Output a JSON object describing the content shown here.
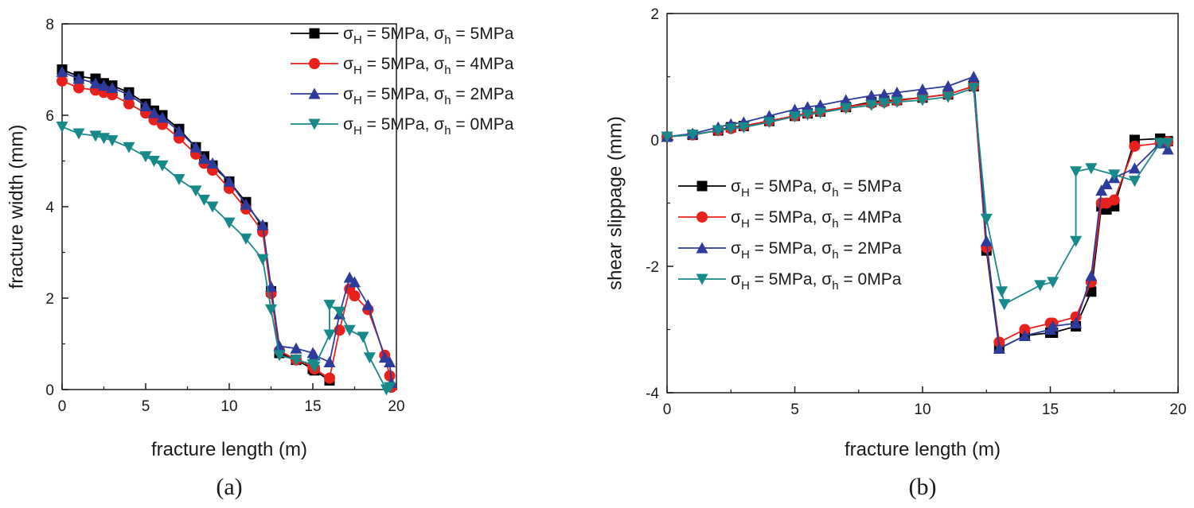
{
  "chart_data": [
    {
      "type": "line",
      "panel_label": "(a)",
      "xlabel": "fracture length (m)",
      "ylabel": "fracture width (mm)",
      "xlim": [
        0,
        20
      ],
      "ylim": [
        0,
        8
      ],
      "xticks": [
        0,
        5,
        10,
        15,
        20
      ],
      "yticks": [
        0,
        2,
        4,
        6,
        8
      ],
      "legend_position": "top-right",
      "series": [
        {
          "name": "σH = 5MPa, σh = 5MPa",
          "legend": {
            "sym1": "σ",
            "sub1": "H",
            "mid": " = 5MPa, ",
            "sym2": "σ",
            "sub2": "h",
            "end": " = 5MPa"
          },
          "color": "#000000",
          "marker": "square",
          "x": [
            0,
            1,
            2,
            2.5,
            3,
            4,
            5,
            5.5,
            6,
            7,
            8,
            8.5,
            9,
            10,
            11,
            12,
            12.5,
            13,
            14,
            15,
            15.1,
            16
          ],
          "y": [
            7.0,
            6.85,
            6.8,
            6.7,
            6.65,
            6.5,
            6.25,
            6.1,
            6.0,
            5.7,
            5.3,
            5.1,
            4.9,
            4.55,
            4.1,
            3.55,
            2.15,
            0.8,
            0.65,
            0.45,
            0.42,
            0.2
          ]
        },
        {
          "name": "σH = 5MPa, σh = 4MPa",
          "legend": {
            "sym1": "σ",
            "sub1": "H",
            "mid": " = 5MPa, ",
            "sym2": "σ",
            "sub2": "h",
            "end": " = 4MPa"
          },
          "color": "#e8211c",
          "marker": "circle",
          "x": [
            0,
            1,
            2,
            2.5,
            3,
            4,
            5,
            5.5,
            6,
            7,
            8,
            8.5,
            9,
            10,
            11,
            12,
            12.5,
            13,
            14,
            15,
            15.1,
            16,
            16.6,
            17.2,
            17.5,
            18.3,
            19.3,
            19.6,
            19.7
          ],
          "y": [
            6.75,
            6.6,
            6.55,
            6.5,
            6.45,
            6.25,
            6.05,
            5.9,
            5.8,
            5.5,
            5.15,
            4.95,
            4.8,
            4.4,
            3.95,
            3.45,
            2.1,
            0.85,
            0.65,
            0.5,
            0.45,
            0.25,
            1.3,
            2.2,
            2.05,
            1.75,
            0.75,
            0.3,
            0.05
          ]
        },
        {
          "name": "σH = 5MPa, σh = 2MPa",
          "legend": {
            "sym1": "σ",
            "sub1": "H",
            "mid": " = 5MPa, ",
            "sym2": "σ",
            "sub2": "h",
            "end": " = 2MPa"
          },
          "color": "#2d3c9c",
          "marker": "triangle-up",
          "x": [
            0,
            1,
            2,
            2.5,
            3,
            4,
            5,
            5.5,
            6,
            7,
            8,
            8.5,
            9,
            10,
            11,
            12,
            12.5,
            13,
            14,
            15,
            15.1,
            16,
            16.6,
            17.2,
            17.5,
            18.3,
            19.3,
            19.6,
            19.7
          ],
          "y": [
            6.95,
            6.8,
            6.7,
            6.65,
            6.6,
            6.45,
            6.2,
            6.05,
            5.95,
            5.65,
            5.3,
            5.05,
            4.95,
            4.55,
            4.05,
            3.6,
            2.25,
            0.95,
            0.9,
            0.8,
            0.75,
            0.6,
            1.65,
            2.45,
            2.35,
            1.85,
            0.7,
            0.6,
            0.15
          ]
        },
        {
          "name": "σH = 5MPa, σh = 0MPa",
          "legend": {
            "sym1": "σ",
            "sub1": "H",
            "mid": " = 5MPa, ",
            "sym2": "σ",
            "sub2": "h",
            "end": " = 0MPa"
          },
          "color": "#16898a",
          "marker": "triangle-down",
          "x": [
            0,
            1,
            2,
            2.5,
            3,
            4,
            5,
            5.5,
            6,
            7,
            8,
            8.5,
            9,
            10,
            11,
            12,
            12.5,
            13,
            14,
            15,
            15.1,
            16,
            16,
            16.6,
            17.2,
            18,
            18.4,
            19.4,
            19.6
          ],
          "y": [
            5.75,
            5.6,
            5.55,
            5.5,
            5.45,
            5.3,
            5.1,
            5.0,
            4.9,
            4.6,
            4.35,
            4.15,
            4.0,
            3.65,
            3.3,
            2.85,
            1.75,
            0.75,
            0.65,
            0.55,
            0.5,
            1.2,
            1.85,
            1.7,
            1.3,
            1.15,
            0.7,
            0.0,
            0.05
          ]
        }
      ]
    },
    {
      "type": "line",
      "panel_label": "(b)",
      "xlabel": "fracture length (m)",
      "ylabel": "shear slippage (mm)",
      "xlim": [
        0,
        20
      ],
      "ylim": [
        -4,
        2
      ],
      "xticks": [
        0,
        5,
        10,
        15,
        20
      ],
      "yticks": [
        -4,
        -2,
        0,
        2
      ],
      "legend_position": "center-left",
      "series": [
        {
          "name": "σH = 5MPa, σh = 5MPa",
          "legend": {
            "sym1": "σ",
            "sub1": "H",
            "mid": " = 5MPa, ",
            "sym2": "σ",
            "sub2": "h",
            "end": " = 5MPa"
          },
          "color": "#000000",
          "marker": "square",
          "x": [
            0,
            1,
            2,
            2.5,
            3,
            4,
            5,
            5.5,
            6,
            7,
            8,
            8.5,
            9,
            10,
            11,
            12,
            12.5,
            13,
            14,
            15,
            15.1,
            16,
            16.6,
            17,
            17.2,
            17.5,
            18.3,
            19.3,
            19.6
          ],
          "y": [
            0.05,
            0.08,
            0.15,
            0.2,
            0.22,
            0.3,
            0.38,
            0.42,
            0.45,
            0.52,
            0.6,
            0.62,
            0.63,
            0.67,
            0.72,
            0.85,
            -1.75,
            -3.3,
            -3.1,
            -3.05,
            -3.05,
            -2.95,
            -2.4,
            -1.05,
            -1.1,
            -1.05,
            0.0,
            0.02,
            -0.02
          ]
        },
        {
          "name": "σH = 5MPa, σh = 4MPa",
          "legend": {
            "sym1": "σ",
            "sub1": "H",
            "mid": " = 5MPa, ",
            "sym2": "σ",
            "sub2": "h",
            "end": " = 4MPa"
          },
          "color": "#e8211c",
          "marker": "circle",
          "x": [
            0,
            1,
            2,
            2.5,
            3,
            4,
            5,
            5.5,
            6,
            7,
            8,
            8.5,
            9,
            10,
            11,
            12,
            12.5,
            13,
            14,
            15,
            15.1,
            16,
            16.6,
            17,
            17.2,
            17.5,
            18.3,
            19.3,
            19.6
          ],
          "y": [
            0.05,
            0.08,
            0.15,
            0.18,
            0.22,
            0.3,
            0.38,
            0.42,
            0.45,
            0.52,
            0.58,
            0.6,
            0.62,
            0.67,
            0.72,
            0.85,
            -1.7,
            -3.2,
            -3.0,
            -2.9,
            -2.9,
            -2.8,
            -2.25,
            -1.0,
            -1.0,
            -0.95,
            -0.1,
            -0.05,
            -0.03
          ]
        },
        {
          "name": "σH = 5MPa, σh = 2MPa",
          "legend": {
            "sym1": "σ",
            "sub1": "H",
            "mid": " = 5MPa, ",
            "sym2": "σ",
            "sub2": "h",
            "end": " = 2MPa"
          },
          "color": "#2d3c9c",
          "marker": "triangle-up",
          "x": [
            0,
            1,
            2,
            2.5,
            3,
            4,
            5,
            5.5,
            6,
            7,
            8,
            8.5,
            9,
            10,
            11,
            12,
            12.5,
            13,
            14,
            15,
            15.1,
            16,
            16.6,
            17,
            17.2,
            17.5,
            18.3,
            19.3,
            19.6
          ],
          "y": [
            0.05,
            0.1,
            0.2,
            0.25,
            0.28,
            0.38,
            0.48,
            0.52,
            0.55,
            0.63,
            0.7,
            0.72,
            0.75,
            0.8,
            0.85,
            1.0,
            -1.6,
            -3.3,
            -3.1,
            -3.0,
            -2.95,
            -2.9,
            -2.15,
            -0.8,
            -0.7,
            -0.6,
            -0.45,
            -0.05,
            -0.15
          ]
        },
        {
          "name": "σH = 5MPa, σh = 0MPa",
          "legend": {
            "sym1": "σ",
            "sub1": "H",
            "mid": " = 5MPa, ",
            "sym2": "σ",
            "sub2": "h",
            "end": " = 0MPa"
          },
          "color": "#16898a",
          "marker": "triangle-down",
          "x": [
            0,
            1,
            2,
            2.5,
            3,
            4,
            5,
            5.5,
            6,
            7,
            8,
            8.5,
            9,
            10,
            11,
            12,
            12.5,
            13.1,
            13.2,
            14.6,
            15.1,
            16,
            16,
            16.6,
            17.5,
            18.3,
            19.3,
            19.6
          ],
          "y": [
            0.05,
            0.08,
            0.15,
            0.18,
            0.2,
            0.28,
            0.37,
            0.4,
            0.43,
            0.5,
            0.55,
            0.58,
            0.6,
            0.63,
            0.68,
            0.82,
            -1.25,
            -2.4,
            -2.6,
            -2.3,
            -2.25,
            -1.6,
            -0.5,
            -0.45,
            -0.55,
            -0.65,
            -0.05,
            -0.05
          ]
        }
      ]
    }
  ]
}
